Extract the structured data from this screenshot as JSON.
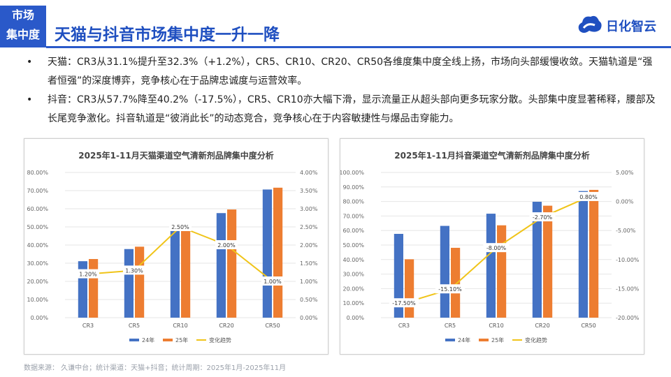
{
  "tag": {
    "line1": "市场",
    "line2": "集中度"
  },
  "title": "天猫与抖音市场集中度一升一降",
  "logo_text": "日化智云",
  "bullets": [
    "天猫：CR3从31.1%提升至32.3%（+1.2%），CR5、CR10、CR20、CR50各维度集中度全线上扬，市场向头部缓慢收敛。天猫轨道是“强者恒强”的深度博弈，竞争核心在于品牌忠诚度与运营效率。",
    "抖音：CR3从57.7%降至40.2%（-17.5%），CR5、CR10亦大幅下滑，显示流量正从超头部向更多玩家分散。头部集中度显著稀释，腰部及长尾竞争激化。抖音轨道是“彼消此长”的动态竞合，竞争核心在于内容敏捷性与爆品击穿能力。"
  ],
  "footer": "数据来源： 久谦中台；统计渠道：天猫+抖音；统计周期：2025年1月-2025年11月",
  "colors": {
    "s24": "#4472c4",
    "s25": "#ed7d31",
    "trend": "#f0c419"
  },
  "chart_data": [
    {
      "type": "bar",
      "title": "2025年1-11月天猫渠道空气清新剂品牌集中度分析",
      "categories": [
        "CR3",
        "CR5",
        "CR10",
        "CR20",
        "CR50"
      ],
      "series": [
        {
          "name": "24年",
          "axis": "left",
          "values": [
            31.1,
            37.8,
            48.3,
            57.6,
            70.6
          ]
        },
        {
          "name": "25年",
          "axis": "left",
          "values": [
            32.3,
            39.1,
            50.8,
            59.6,
            71.6
          ]
        },
        {
          "name": "变化趋势",
          "axis": "right",
          "kind": "line",
          "values": [
            1.2,
            1.3,
            2.5,
            2.0,
            1.0
          ],
          "labels": [
            "1.20%",
            "1.30%",
            "2.50%",
            "2.00%",
            "1.00%"
          ]
        }
      ],
      "ylim": [
        0,
        80
      ],
      "yticks": [
        "0.00%",
        "10.00%",
        "20.00%",
        "30.00%",
        "40.00%",
        "50.00%",
        "60.00%",
        "70.00%",
        "80.00%"
      ],
      "y2lim": [
        0,
        4
      ],
      "y2ticks": [
        "0.00%",
        "0.50%",
        "1.00%",
        "1.50%",
        "2.00%",
        "2.50%",
        "3.00%",
        "3.50%",
        "4.00%"
      ],
      "legend": [
        "24年",
        "25年",
        "变化趋势"
      ]
    },
    {
      "type": "bar",
      "title": "2025年1-11月抖音渠道空气清新剂品牌集中度分析",
      "categories": [
        "CR3",
        "CR5",
        "CR10",
        "CR20",
        "CR50"
      ],
      "series": [
        {
          "name": "24年",
          "axis": "left",
          "values": [
            57.7,
            63.2,
            71.6,
            79.8,
            87.2
          ]
        },
        {
          "name": "25年",
          "axis": "left",
          "values": [
            40.2,
            48.1,
            63.6,
            77.1,
            88.0
          ]
        },
        {
          "name": "变化趋势",
          "axis": "right",
          "kind": "line",
          "values": [
            -17.5,
            -15.1,
            -8.0,
            -2.7,
            0.8
          ],
          "labels": [
            "-17.50%",
            "-15.10%",
            "-8.00%",
            "-2.70%",
            "0.80%"
          ]
        }
      ],
      "ylim": [
        0,
        100
      ],
      "yticks": [
        "0.00%",
        "10.00%",
        "20.00%",
        "30.00%",
        "40.00%",
        "50.00%",
        "60.00%",
        "70.00%",
        "80.00%",
        "90.00%",
        "100.00%"
      ],
      "y2lim": [
        -20,
        5
      ],
      "y2ticks": [
        "-20.00%",
        "-15.00%",
        "-10.00%",
        "-5.00%",
        "0.00%",
        "5.00%"
      ],
      "legend": [
        "24年",
        "25年",
        "变化趋势"
      ]
    }
  ]
}
